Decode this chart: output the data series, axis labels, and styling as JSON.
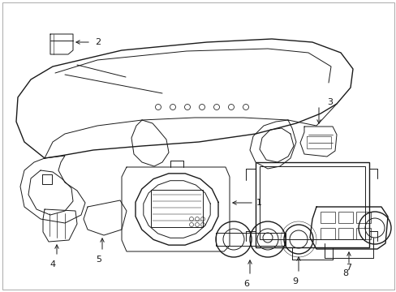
{
  "bg_color": "#ffffff",
  "line_color": "#1a1a1a",
  "lw": 0.7,
  "lw2": 1.0,
  "figsize": [
    4.89,
    3.6
  ],
  "dpi": 100
}
